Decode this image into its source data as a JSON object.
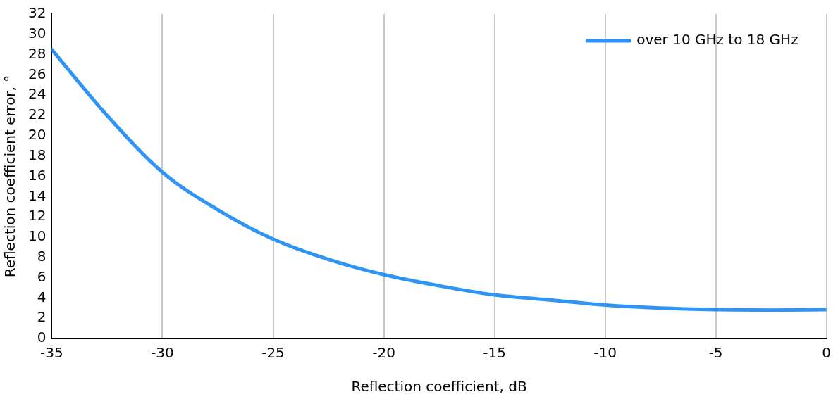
{
  "chart_data": {
    "type": "line",
    "xlabel": "Reflection coefficient, dB",
    "ylabel": "Reflection coefficient error, °",
    "xlim": [
      -35,
      0
    ],
    "xticks": [
      -35,
      -30,
      -25,
      -20,
      -15,
      -10,
      -5,
      0
    ],
    "ylim": [
      0,
      32
    ],
    "yticks": [
      0,
      2,
      4,
      6,
      8,
      10,
      12,
      14,
      16,
      18,
      20,
      22,
      24,
      26,
      28,
      30,
      32
    ],
    "grid": "x",
    "legend": "top right",
    "marker": "none",
    "line_style": "solid",
    "series": [
      {
        "name": "over 10 GHz to 18 GHz",
        "color": "#2f95f5",
        "x": [
          -35,
          -32.5,
          -30,
          -27.5,
          -25,
          -22.5,
          -20,
          -17.5,
          -15,
          -12.5,
          -10,
          -7.5,
          -5,
          -2.5,
          0
        ],
        "values": [
          28.5,
          22.0,
          16.4,
          12.7,
          9.8,
          7.8,
          6.3,
          5.2,
          4.3,
          3.8,
          3.3,
          3.0,
          2.85,
          2.8,
          2.85
        ]
      }
    ]
  }
}
